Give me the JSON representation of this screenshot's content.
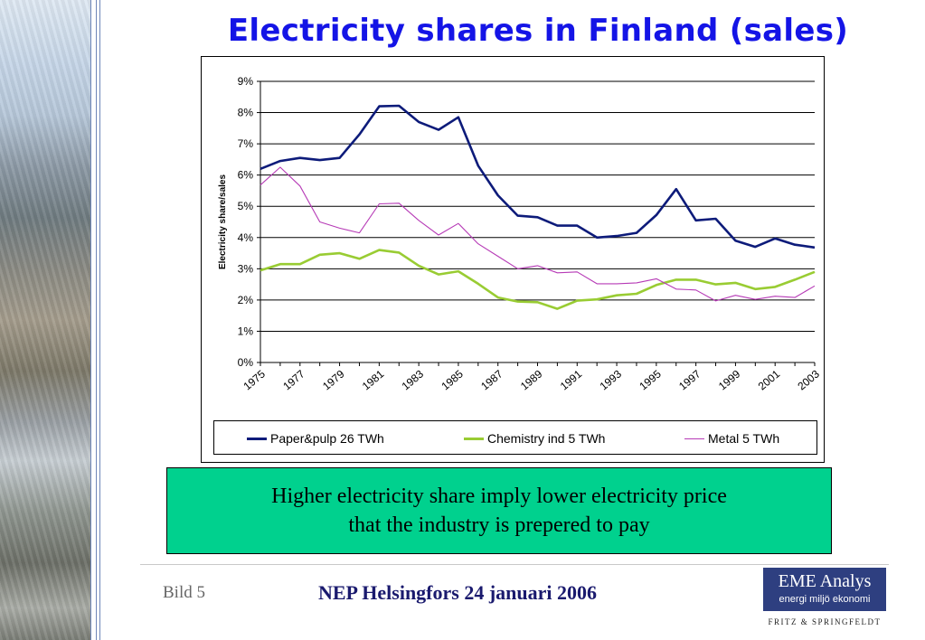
{
  "title": "Electricity shares in Finland (sales)",
  "callout": {
    "line1": "Higher electricity share imply lower electricity price",
    "line2": "that the industry is prepered to pay"
  },
  "footer": {
    "slide_number": "Bild 5",
    "title": "NEP Helsingfors 24 januari 2006"
  },
  "logo": {
    "main": "EME Analys",
    "sub": "energi miljö ekonomi",
    "footer": "FRITZ & SPRINGFELDT"
  },
  "colors": {
    "title": "#1414e6",
    "callout_bg": "#00d18e",
    "paper": "#0d1b7a",
    "chemistry": "#99cc33",
    "metal": "#b63ab6",
    "logo_bg": "#2e3f80"
  },
  "chart_data": {
    "type": "line",
    "title": "",
    "xlabel": "",
    "ylabel": "Electricity share/sales",
    "x": [
      1975,
      1976,
      1977,
      1978,
      1979,
      1980,
      1981,
      1982,
      1983,
      1984,
      1985,
      1986,
      1987,
      1988,
      1989,
      1990,
      1991,
      1992,
      1993,
      1994,
      1995,
      1996,
      1997,
      1998,
      1999,
      2000,
      2001,
      2002,
      2003
    ],
    "x_tick_labels": [
      "1975",
      "1977",
      "1979",
      "1981",
      "1983",
      "1985",
      "1987",
      "1989",
      "1991",
      "1993",
      "1995",
      "1997",
      "1999",
      "2001",
      "2003"
    ],
    "y_tick_labels": [
      "0%",
      "1%",
      "2%",
      "3%",
      "4%",
      "5%",
      "6%",
      "7%",
      "8%",
      "9%"
    ],
    "ylim": [
      0,
      9
    ],
    "grid": "horizontal",
    "legend_position": "bottom",
    "series": [
      {
        "name": "Paper&pulp 26 TWh",
        "color": "#0d1b7a",
        "values": [
          6.2,
          6.45,
          6.55,
          6.48,
          6.55,
          7.3,
          8.2,
          8.22,
          7.7,
          7.45,
          7.85,
          6.3,
          5.35,
          4.7,
          4.65,
          4.38,
          4.38,
          4.0,
          4.05,
          4.15,
          4.72,
          5.55,
          4.55,
          4.6,
          3.9,
          3.7,
          3.97,
          3.77,
          3.68
        ]
      },
      {
        "name": "Chemistry ind 5 TWh",
        "color": "#99cc33",
        "values": [
          2.95,
          3.15,
          3.15,
          3.45,
          3.5,
          3.32,
          3.6,
          3.52,
          3.1,
          2.82,
          2.92,
          2.52,
          2.08,
          1.95,
          1.93,
          1.72,
          1.98,
          2.02,
          2.15,
          2.2,
          2.48,
          2.65,
          2.65,
          2.5,
          2.55,
          2.35,
          2.42,
          2.65,
          2.9
        ]
      },
      {
        "name": "Metal 5 TWh",
        "color": "#b63ab6",
        "values": [
          5.68,
          6.25,
          5.65,
          4.5,
          4.3,
          4.15,
          5.08,
          5.1,
          4.55,
          4.08,
          4.45,
          3.8,
          3.4,
          3.0,
          3.1,
          2.87,
          2.9,
          2.52,
          2.52,
          2.55,
          2.68,
          2.35,
          2.32,
          1.97,
          2.15,
          2.02,
          2.12,
          2.08,
          2.45
        ]
      }
    ]
  }
}
